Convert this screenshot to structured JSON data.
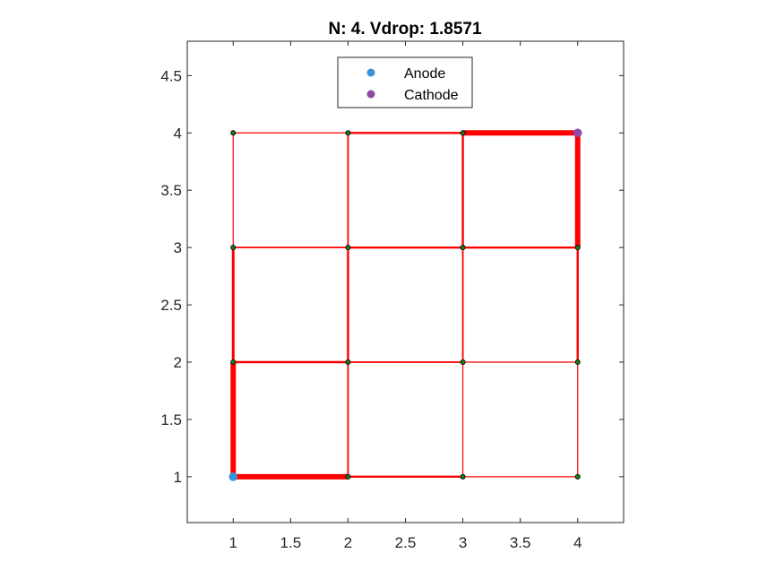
{
  "chart_data": {
    "type": "scatter",
    "title": "N: 4. Vdrop: 1.8571",
    "xlabel": "",
    "ylabel": "",
    "xlim": [
      0.6,
      4.4
    ],
    "ylim": [
      0.6,
      4.8
    ],
    "xticks": [
      "1",
      "1.5",
      "2",
      "2.5",
      "3",
      "3.5",
      "4"
    ],
    "xtick_values": [
      1,
      1.5,
      2,
      2.5,
      3,
      3.5,
      4
    ],
    "yticks": [
      "1",
      "1.5",
      "2",
      "2.5",
      "3",
      "3.5",
      "4",
      "4.5"
    ],
    "ytick_values": [
      1,
      1.5,
      2,
      2.5,
      3,
      3.5,
      4,
      4.5
    ],
    "grid": false,
    "legend_position": "top-center",
    "colors": {
      "edge": "#ff0000",
      "node_fill": "#1a7a1a",
      "anode": "#3a93d6",
      "cathode": "#8e4aa8",
      "axis": "#262626"
    },
    "nodes": [
      {
        "x": 1,
        "y": 1
      },
      {
        "x": 2,
        "y": 1
      },
      {
        "x": 3,
        "y": 1
      },
      {
        "x": 4,
        "y": 1
      },
      {
        "x": 1,
        "y": 2
      },
      {
        "x": 2,
        "y": 2
      },
      {
        "x": 3,
        "y": 2
      },
      {
        "x": 4,
        "y": 2
      },
      {
        "x": 1,
        "y": 3
      },
      {
        "x": 2,
        "y": 3
      },
      {
        "x": 3,
        "y": 3
      },
      {
        "x": 4,
        "y": 3
      },
      {
        "x": 1,
        "y": 4
      },
      {
        "x": 2,
        "y": 4
      },
      {
        "x": 3,
        "y": 4
      },
      {
        "x": 4,
        "y": 4
      }
    ],
    "edges": [
      {
        "from": [
          1,
          1
        ],
        "to": [
          2,
          1
        ],
        "current": 5
      },
      {
        "from": [
          2,
          1
        ],
        "to": [
          3,
          1
        ],
        "current": 2
      },
      {
        "from": [
          3,
          1
        ],
        "to": [
          4,
          1
        ],
        "current": 1
      },
      {
        "from": [
          1,
          2
        ],
        "to": [
          2,
          2
        ],
        "current": 2
      },
      {
        "from": [
          2,
          2
        ],
        "to": [
          3,
          2
        ],
        "current": 1.5
      },
      {
        "from": [
          3,
          2
        ],
        "to": [
          4,
          2
        ],
        "current": 1
      },
      {
        "from": [
          1,
          3
        ],
        "to": [
          2,
          3
        ],
        "current": 1.5
      },
      {
        "from": [
          2,
          3
        ],
        "to": [
          3,
          3
        ],
        "current": 2
      },
      {
        "from": [
          3,
          3
        ],
        "to": [
          4,
          3
        ],
        "current": 2
      },
      {
        "from": [
          1,
          4
        ],
        "to": [
          2,
          4
        ],
        "current": 1
      },
      {
        "from": [
          2,
          4
        ],
        "to": [
          3,
          4
        ],
        "current": 2
      },
      {
        "from": [
          3,
          4
        ],
        "to": [
          4,
          4
        ],
        "current": 5
      },
      {
        "from": [
          1,
          1
        ],
        "to": [
          1,
          2
        ],
        "current": 5
      },
      {
        "from": [
          1,
          2
        ],
        "to": [
          1,
          3
        ],
        "current": 2.5
      },
      {
        "from": [
          1,
          3
        ],
        "to": [
          1,
          4
        ],
        "current": 1
      },
      {
        "from": [
          2,
          1
        ],
        "to": [
          2,
          2
        ],
        "current": 1.5
      },
      {
        "from": [
          2,
          2
        ],
        "to": [
          2,
          3
        ],
        "current": 2
      },
      {
        "from": [
          2,
          3
        ],
        "to": [
          2,
          4
        ],
        "current": 1.5
      },
      {
        "from": [
          3,
          1
        ],
        "to": [
          3,
          2
        ],
        "current": 1
      },
      {
        "from": [
          3,
          2
        ],
        "to": [
          3,
          3
        ],
        "current": 1.5
      },
      {
        "from": [
          3,
          3
        ],
        "to": [
          3,
          4
        ],
        "current": 2
      },
      {
        "from": [
          4,
          1
        ],
        "to": [
          4,
          2
        ],
        "current": 1
      },
      {
        "from": [
          4,
          2
        ],
        "to": [
          4,
          3
        ],
        "current": 2
      },
      {
        "from": [
          4,
          3
        ],
        "to": [
          4,
          4
        ],
        "current": 5
      }
    ],
    "series": [
      {
        "name": "Anode",
        "x": [
          1
        ],
        "y": [
          1
        ]
      },
      {
        "name": "Cathode",
        "x": [
          4
        ],
        "y": [
          4
        ]
      }
    ]
  }
}
